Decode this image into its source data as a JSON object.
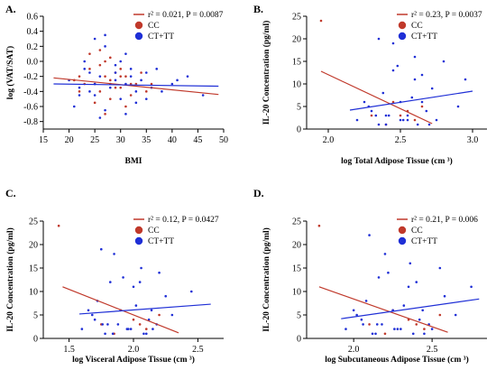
{
  "chart_data": [
    {
      "panel": "A.",
      "type": "scatter",
      "xlabel": "BMI",
      "ylabel": "log (VAT/SAT)",
      "xlim": [
        15,
        50
      ],
      "ylim": [
        -0.9,
        0.6
      ],
      "xticks": [
        "15",
        "20",
        "25",
        "30",
        "35",
        "40",
        "45",
        "50"
      ],
      "yticks": [
        "-0.8",
        "-0.6",
        "-0.4",
        "-0.2",
        "0.0",
        "0.2",
        "0.4",
        "0.6"
      ],
      "annotation": "r² = 0.021, P = 0.0087",
      "legend": [
        "CC",
        "CT+TT"
      ],
      "colors": {
        "CC": "#c0392b",
        "CT+TT": "#1f2fd6"
      },
      "fit_lines": [
        {
          "name": "CC",
          "x": [
            17,
            49
          ],
          "y": [
            -0.22,
            -0.44
          ]
        },
        {
          "name": "CT+TT",
          "x": [
            17,
            49
          ],
          "y": [
            -0.3,
            -0.33
          ]
        }
      ],
      "series": [
        {
          "name": "CC",
          "x": [
            22,
            24,
            25,
            26,
            27,
            28,
            29,
            30,
            31,
            32,
            23,
            26,
            28,
            30,
            33,
            35,
            21,
            24,
            27,
            29,
            31,
            34,
            36,
            25,
            28,
            22,
            27,
            30,
            32,
            26
          ],
          "y": [
            -0.2,
            -0.1,
            -0.3,
            -0.4,
            0.0,
            -0.25,
            -0.15,
            -0.35,
            -0.2,
            -0.45,
            -0.3,
            -0.05,
            -0.5,
            -0.1,
            -0.3,
            -0.4,
            -0.25,
            0.1,
            -0.2,
            -0.35,
            -0.6,
            -0.15,
            -0.3,
            -0.55,
            0.05,
            -0.4,
            -0.7,
            -0.2,
            -0.3,
            0.15
          ]
        },
        {
          "name": "CT+TT",
          "x": [
            20,
            22,
            23,
            24,
            25,
            26,
            27,
            28,
            29,
            30,
            31,
            32,
            33,
            34,
            35,
            36,
            38,
            40,
            43,
            46,
            21,
            23,
            25,
            27,
            29,
            31,
            33,
            26,
            28,
            30,
            24,
            32,
            27,
            29,
            35,
            25,
            31,
            22,
            37,
            41
          ],
          "y": [
            -0.25,
            -0.35,
            0.0,
            -0.15,
            -0.45,
            -0.2,
            0.2,
            -0.3,
            -0.05,
            -0.5,
            -0.3,
            -0.1,
            -0.4,
            -0.25,
            -0.15,
            -0.35,
            -0.4,
            -0.3,
            -0.2,
            -0.45,
            -0.6,
            -0.1,
            0.3,
            -0.65,
            -0.25,
            0.1,
            -0.55,
            -0.75,
            -0.35,
            0.0,
            -0.4,
            -0.2,
            0.35,
            -0.15,
            -0.5,
            -0.3,
            -0.7,
            -0.45,
            -0.1,
            -0.25
          ]
        }
      ]
    },
    {
      "panel": "B.",
      "type": "scatter",
      "xlabel": "log Total Adipose Tissue (cm ³)",
      "ylabel": "IL-20 Concentration (pg/ml)",
      "xlim": [
        1.85,
        3.1
      ],
      "ylim": [
        0,
        25
      ],
      "xticks": [
        "2.0",
        "2.5",
        "3.0"
      ],
      "yticks": [
        "0",
        "5",
        "10",
        "15",
        "20",
        "25"
      ],
      "annotation": "r² = 0.23, P = 0.0037",
      "legend": [
        "CC",
        "CT+TT"
      ],
      "colors": {
        "CC": "#c0392b",
        "CT+TT": "#1f2fd6"
      },
      "fit_lines": [
        {
          "name": "CC",
          "x": [
            1.95,
            2.72
          ],
          "y": [
            12.8,
            1.2
          ]
        },
        {
          "name": "CT+TT",
          "x": [
            2.15,
            3.0
          ],
          "y": [
            4.2,
            8.4
          ]
        }
      ],
      "series": [
        {
          "name": "CC",
          "x": [
            1.95,
            2.3,
            2.45,
            2.55,
            2.6,
            2.65,
            2.4,
            2.5
          ],
          "y": [
            24,
            3,
            6,
            4,
            2,
            5,
            1,
            3
          ]
        },
        {
          "name": "CT+TT",
          "x": [
            2.2,
            2.3,
            2.35,
            2.4,
            2.45,
            2.5,
            2.55,
            2.6,
            2.65,
            2.7,
            2.75,
            2.8,
            2.9,
            2.95,
            2.25,
            2.35,
            2.42,
            2.48,
            2.52,
            2.58,
            2.62,
            2.68,
            2.45,
            2.38,
            2.55,
            2.28,
            2.72,
            2.5,
            2.6,
            2.4,
            2.65,
            2.33
          ],
          "y": [
            2,
            4,
            20,
            3,
            19,
            6,
            2,
            11,
            12,
            1,
            2,
            15,
            5,
            11,
            6,
            1,
            3,
            14,
            2,
            7,
            1,
            4,
            13,
            8,
            3,
            5,
            9,
            2,
            16,
            1,
            6,
            3
          ]
        }
      ]
    },
    {
      "panel": "C.",
      "type": "scatter",
      "xlabel": "log Visceral Adipose Tissue (cm ³)",
      "ylabel": "IL-20 Concentration (pg/ml)",
      "xlim": [
        1.3,
        2.7
      ],
      "ylim": [
        0,
        25
      ],
      "xticks": [
        "1.5",
        "2.0",
        "2.5"
      ],
      "yticks": [
        "0",
        "5",
        "10",
        "15",
        "20",
        "25"
      ],
      "annotation": "r² = 0.12, P = 0.0427",
      "legend": [
        "CC",
        "CT+TT"
      ],
      "colors": {
        "CC": "#c0392b",
        "CT+TT": "#1f2fd6"
      },
      "fit_lines": [
        {
          "name": "CC",
          "x": [
            1.45,
            2.35
          ],
          "y": [
            11,
            1.2
          ]
        },
        {
          "name": "CT+TT",
          "x": [
            1.58,
            2.6
          ],
          "y": [
            5.2,
            7.3
          ]
        }
      ],
      "series": [
        {
          "name": "CC",
          "x": [
            1.42,
            1.75,
            1.9,
            2.0,
            2.1,
            2.2,
            1.85,
            2.05
          ],
          "y": [
            24,
            3,
            6,
            4,
            2,
            5,
            1,
            3
          ]
        },
        {
          "name": "CT+TT",
          "x": [
            1.6,
            1.7,
            1.75,
            1.8,
            1.85,
            1.9,
            1.95,
            2.0,
            2.05,
            2.1,
            2.15,
            2.2,
            2.3,
            2.45,
            1.65,
            1.78,
            1.88,
            1.92,
            1.98,
            2.02,
            2.08,
            2.12,
            1.82,
            1.72,
            2.18,
            1.68,
            2.25,
            1.96,
            2.06,
            1.84,
            2.14,
            1.76
          ],
          "y": [
            2,
            4,
            19,
            3,
            18,
            6,
            2,
            11,
            12,
            1,
            2,
            14,
            5,
            10,
            6,
            1,
            3,
            13,
            2,
            7,
            1,
            4,
            12,
            8,
            3,
            5,
            9,
            2,
            15,
            1,
            6,
            3
          ]
        }
      ]
    },
    {
      "panel": "D.",
      "type": "scatter",
      "xlabel": "log Subcutaneous Adipose Tissue (cm ³)",
      "ylabel": "IL-20 Concentration (pg/ml)",
      "xlim": [
        1.7,
        2.85
      ],
      "ylim": [
        0,
        25
      ],
      "xticks": [
        "2.0",
        "2.5"
      ],
      "yticks": [
        "0",
        "5",
        "10",
        "15",
        "20",
        "25"
      ],
      "annotation": "r² = 0.21, P = 0.006",
      "legend": [
        "CC",
        "CT+TT"
      ],
      "colors": {
        "CC": "#c0392b",
        "CT+TT": "#1f2fd6"
      },
      "fit_lines": [
        {
          "name": "CC",
          "x": [
            1.78,
            2.6
          ],
          "y": [
            11,
            1.3
          ]
        },
        {
          "name": "CT+TT",
          "x": [
            1.92,
            2.8
          ],
          "y": [
            4.2,
            8.4
          ]
        }
      ],
      "series": [
        {
          "name": "CC",
          "x": [
            1.78,
            2.1,
            2.25,
            2.35,
            2.45,
            2.55,
            2.2,
            2.4
          ],
          "y": [
            24,
            3,
            6,
            4,
            2,
            5,
            1,
            3
          ]
        },
        {
          "name": "CT+TT",
          "x": [
            1.95,
            2.05,
            2.1,
            2.15,
            2.2,
            2.25,
            2.3,
            2.35,
            2.4,
            2.45,
            2.5,
            2.55,
            2.65,
            2.75,
            2.0,
            2.12,
            2.18,
            2.22,
            2.28,
            2.32,
            2.38,
            2.42,
            2.16,
            2.08,
            2.48,
            2.02,
            2.58,
            2.26,
            2.36,
            2.14,
            2.44,
            2.06
          ],
          "y": [
            2,
            4,
            22,
            3,
            18,
            6,
            2,
            11,
            12,
            1,
            2,
            15,
            5,
            11,
            6,
            1,
            3,
            14,
            2,
            7,
            1,
            4,
            13,
            8,
            3,
            5,
            9,
            2,
            16,
            1,
            6,
            3
          ]
        }
      ]
    }
  ]
}
